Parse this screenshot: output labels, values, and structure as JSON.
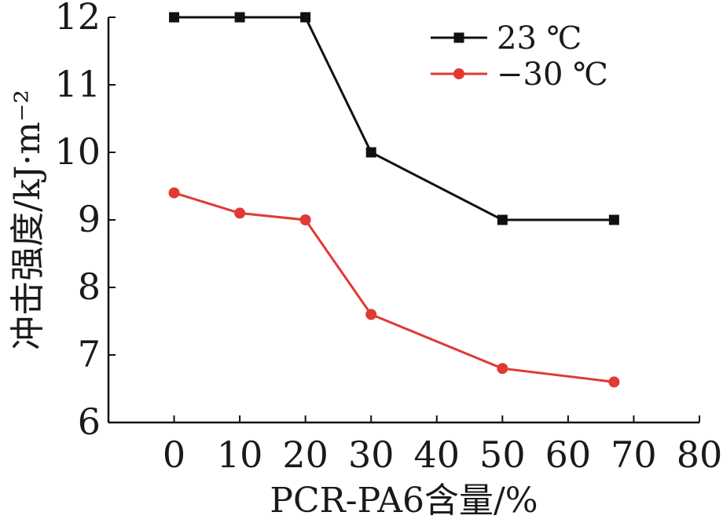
{
  "chart_data": {
    "type": "line",
    "xlabel": "PCR-PA6含量/%",
    "ylabel": "冲击强度/kJ·m⁻²",
    "xlim": [
      -10,
      80
    ],
    "ylim": [
      6,
      12
    ],
    "xticks": [
      "0",
      "10",
      "20",
      "30",
      "40",
      "50",
      "60",
      "70",
      "80"
    ],
    "yticks": [
      "6",
      "7",
      "8",
      "9",
      "10",
      "11",
      "12"
    ],
    "grid": false,
    "legend_position": "top-right",
    "series": [
      {
        "name": "23 ℃",
        "color": "#111111",
        "marker": "square",
        "x": [
          0,
          10,
          20,
          30,
          50,
          67
        ],
        "y": [
          12,
          12,
          12,
          10,
          9,
          9
        ]
      },
      {
        "name": "−30 ℃",
        "color": "#e03a33",
        "marker": "circle",
        "x": [
          0,
          10,
          20,
          30,
          50,
          67
        ],
        "y": [
          9.4,
          9.1,
          9.0,
          7.6,
          6.8,
          6.6
        ]
      }
    ]
  }
}
